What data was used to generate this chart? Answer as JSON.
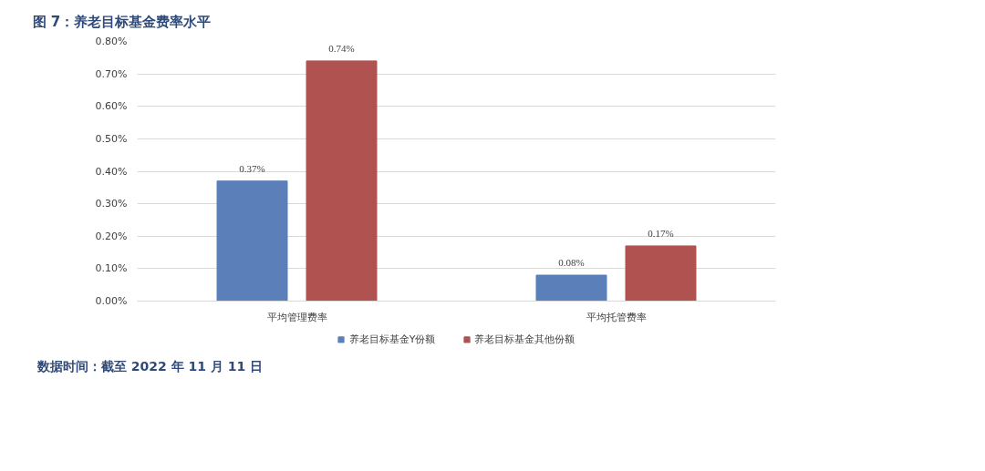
{
  "chart_data": {
    "type": "bar",
    "title": "图 7：养老目标基金费率水平",
    "categories": [
      "平均管理费率",
      "平均托管费率"
    ],
    "series": [
      {
        "name": "养老目标基金Y份额",
        "color": "#5b80b9",
        "values": [
          0.37,
          0.08
        ],
        "value_labels": [
          "0.37%",
          "0.08%"
        ]
      },
      {
        "name": "养老目标基金其他份额",
        "color": "#b0524f",
        "values": [
          0.74,
          0.17
        ],
        "value_labels": [
          "0.74%",
          "0.17%"
        ]
      }
    ],
    "ylim": [
      0,
      0.8
    ],
    "yticks": [
      {
        "value": 0,
        "label": "0.00%"
      },
      {
        "value": 0.1,
        "label": "0.10%"
      },
      {
        "value": 0.2,
        "label": "0.20%"
      },
      {
        "value": 0.3,
        "label": "0.30%"
      },
      {
        "value": 0.4,
        "label": "0.40%"
      },
      {
        "value": 0.5,
        "label": "0.50%"
      },
      {
        "value": 0.6,
        "label": "0.60%"
      },
      {
        "value": 0.7,
        "label": "0.70%"
      },
      {
        "value": 0.8,
        "label": "0.80%"
      }
    ],
    "grid": "y",
    "legend": "bottom",
    "annotations": [
      "数据时间：截至 2022 年 11 月 11 日"
    ]
  }
}
